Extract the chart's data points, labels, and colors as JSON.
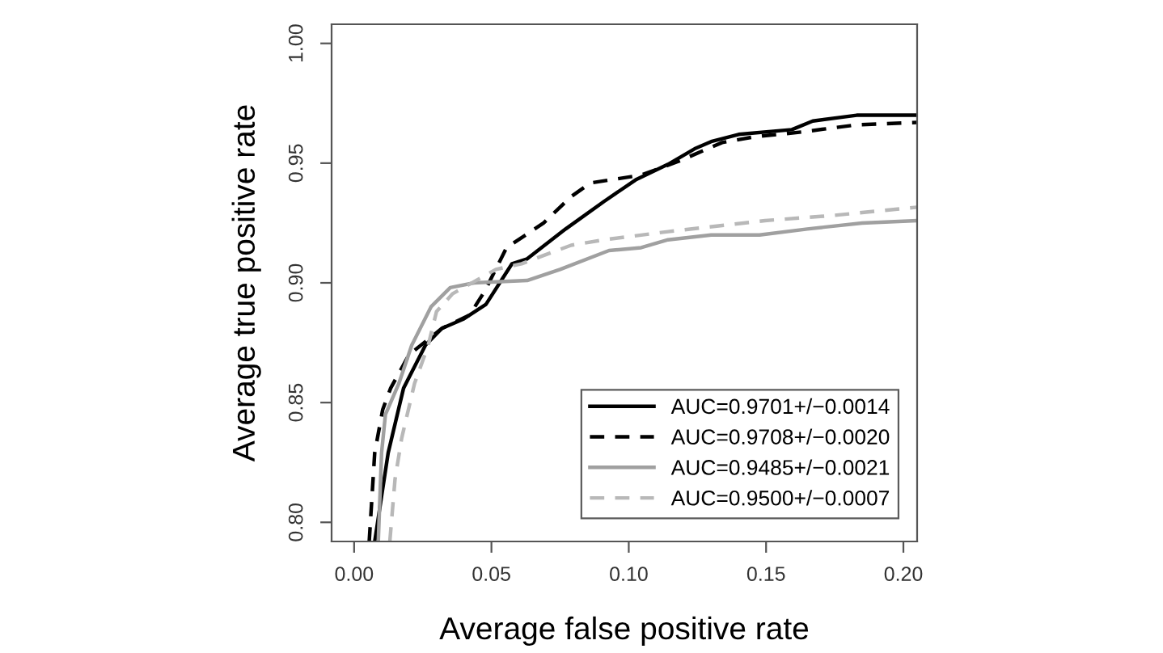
{
  "chart_data": {
    "type": "line",
    "xlabel": "Average false positive rate",
    "ylabel": "Average true positive rate",
    "xlim": [
      -0.0082,
      0.205
    ],
    "ylim": [
      0.792,
      1.008
    ],
    "xticks": [
      {
        "value": 0,
        "label": "0.00"
      },
      {
        "value": 0.05,
        "label": "0.05"
      },
      {
        "value": 0.1,
        "label": "0.10"
      },
      {
        "value": 0.15,
        "label": "0.15"
      },
      {
        "value": 0.2,
        "label": "0.20"
      }
    ],
    "yticks": [
      {
        "value": 0.8,
        "label": "0.80"
      },
      {
        "value": 0.85,
        "label": "0.85"
      },
      {
        "value": 0.9,
        "label": "0.90"
      },
      {
        "value": 0.95,
        "label": "0.95"
      },
      {
        "value": 1.0,
        "label": "1.00"
      }
    ],
    "grid": false,
    "legend": "bottom right",
    "marker": "none",
    "series": [
      {
        "name": "AUC=0.9701+/−0.0014",
        "color": "#000000",
        "line_style": "solid",
        "x": [
          0.0075,
          0.0124,
          0.018,
          0.026,
          0.032,
          0.04,
          0.048,
          0.0575,
          0.063,
          0.077,
          0.091,
          0.1025,
          0.1143,
          0.124,
          0.13,
          0.14,
          0.1594,
          0.167,
          0.183,
          0.205
        ],
        "values": [
          0.792,
          0.829,
          0.856,
          0.874,
          0.881,
          0.885,
          0.891,
          0.908,
          0.91,
          0.9225,
          0.934,
          0.943,
          0.9495,
          0.956,
          0.959,
          0.962,
          0.964,
          0.9676,
          0.97,
          0.97
        ]
      },
      {
        "name": "AUC=0.9708+/−0.0020",
        "color": "#000000",
        "line_style": "dashed",
        "x": [
          0.0055,
          0.0075,
          0.0104,
          0.0133,
          0.02,
          0.032,
          0.042,
          0.0476,
          0.0555,
          0.069,
          0.079,
          0.086,
          0.1045,
          0.118,
          0.134,
          0.1457,
          0.163,
          0.183,
          0.205
        ],
        "values": [
          0.792,
          0.829,
          0.847,
          0.856,
          0.87,
          0.881,
          0.8865,
          0.8966,
          0.9147,
          0.925,
          0.936,
          0.9417,
          0.945,
          0.9507,
          0.9586,
          0.961,
          0.963,
          0.966,
          0.967
        ]
      },
      {
        "name": "AUC=0.9485+/−0.0021",
        "color": "#a0a0a0",
        "line_style": "solid",
        "x": [
          0.0088,
          0.01,
          0.0114,
          0.0163,
          0.021,
          0.028,
          0.035,
          0.0437,
          0.063,
          0.075,
          0.0928,
          0.1045,
          0.1143,
          0.13,
          0.1476,
          0.165,
          0.185,
          0.205
        ],
        "values": [
          0.792,
          0.829,
          0.845,
          0.858,
          0.874,
          0.89,
          0.898,
          0.9,
          0.901,
          0.9056,
          0.9135,
          0.9147,
          0.918,
          0.92,
          0.92,
          0.9225,
          0.925,
          0.926
        ]
      },
      {
        "name": "AUC=0.9500+/−0.0007",
        "color": "#b8b8b8",
        "line_style": "dashed",
        "x": [
          0.013,
          0.0149,
          0.0173,
          0.022,
          0.027,
          0.03,
          0.0359,
          0.0516,
          0.061,
          0.079,
          0.091,
          0.1143,
          0.1496,
          0.173,
          0.205
        ],
        "values": [
          0.792,
          0.818,
          0.835,
          0.858,
          0.874,
          0.888,
          0.8955,
          0.9056,
          0.908,
          0.9157,
          0.918,
          0.9214,
          0.926,
          0.928,
          0.9316
        ]
      }
    ]
  }
}
